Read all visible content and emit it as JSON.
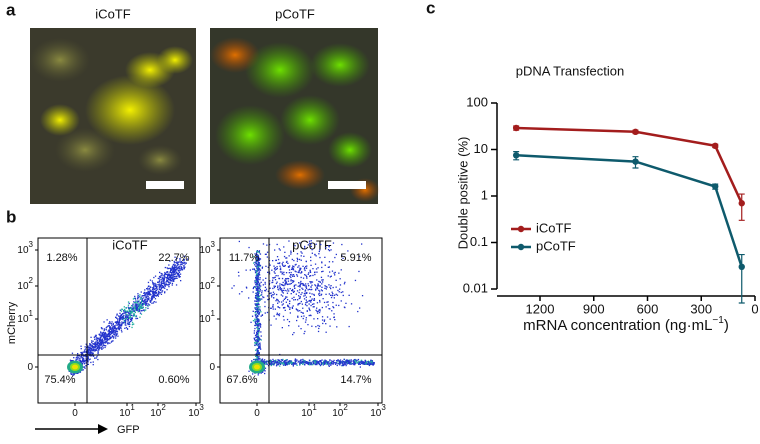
{
  "panel_labels": [
    "a",
    "b",
    "c"
  ],
  "images": [
    {
      "title": "iCoTF"
    },
    {
      "title": "pCoTF"
    }
  ],
  "flow": {
    "y_label": "mCherry",
    "x_label": "GFP",
    "y_ticks": [
      {
        "base": "10",
        "exp": "3"
      },
      {
        "base": "10",
        "exp": "2"
      },
      {
        "base": "10",
        "exp": "1"
      },
      {
        "base": "0"
      }
    ],
    "x_ticks": [
      {
        "base": "0"
      },
      {
        "base": "10",
        "exp": "1"
      },
      {
        "base": "10",
        "exp": "2"
      },
      {
        "base": "10",
        "exp": "3"
      }
    ],
    "plots": [
      {
        "title": "iCoTF",
        "quadrants": [
          "1.28%",
          "22.7%",
          "75.4%",
          "0.60%"
        ]
      },
      {
        "title": "pCoTF",
        "quadrants": [
          "11.7%",
          "5.91%",
          "67.6%",
          "14.7%"
        ]
      }
    ]
  },
  "chart_data": {
    "type": "line",
    "title": "pDNA Transfection",
    "ylabel": "Double positive (%)",
    "xlabel": "mRNA concentration (ng·mL",
    "xlabel_sup": "−1",
    "xlabel_end": ")",
    "x": [
      1333,
      667,
      222,
      74
    ],
    "series": [
      {
        "name": "iCoTF",
        "color": "#a31d1d",
        "values": [
          29,
          24,
          12,
          0.7
        ],
        "errors": [
          3,
          2,
          1,
          0.4
        ]
      },
      {
        "name": "pCoTF",
        "color": "#0e5a6c",
        "values": [
          7.5,
          5.5,
          1.6,
          0.03
        ],
        "errors": [
          1.5,
          1.5,
          0.2,
          0.025
        ]
      }
    ],
    "xlim": [
      1440,
      0
    ],
    "xticks": [
      1200,
      900,
      600,
      300,
      0
    ],
    "ylim": [
      0.01,
      100
    ],
    "yticks": [
      0.01,
      0.1,
      1,
      10,
      100
    ],
    "log_y": true,
    "legend": "lower left"
  }
}
